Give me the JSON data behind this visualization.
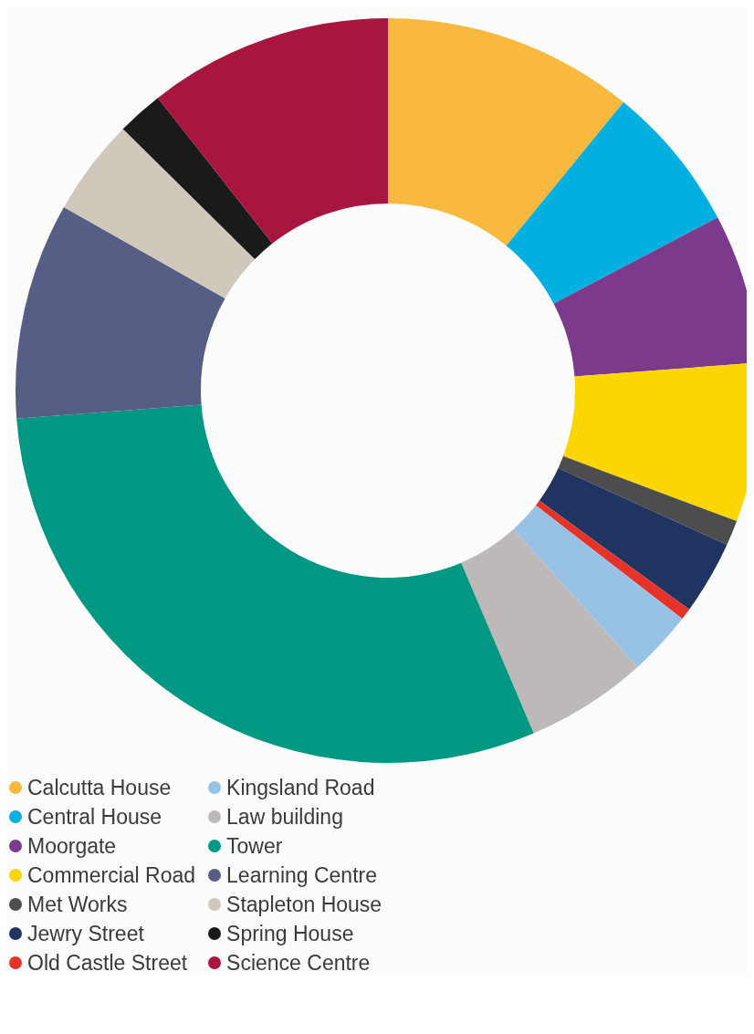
{
  "chart_data": {
    "type": "donut",
    "categories": [
      "Calcutta House",
      "Central House",
      "Moorgate",
      "Commercial Road",
      "Met Works",
      "Jewry Street",
      "Old Castle Street",
      "Kingsland Road",
      "Law building",
      "Tower",
      "Learning Centre",
      "Stapleton House",
      "Spring House",
      "Science Centre"
    ],
    "values": [
      10.9,
      6.4,
      6.5,
      6.9,
      1.1,
      3.2,
      0.5,
      2.8,
      5.3,
      30.2,
      9.4,
      4.2,
      2.0,
      10.6
    ],
    "colors": [
      "#f8b93e",
      "#00b0e0",
      "#7c3a8c",
      "#fbd600",
      "#4d4d4f",
      "#1f3461",
      "#e63329",
      "#98c1e6",
      "#bcb9b8",
      "#009882",
      "#565e85",
      "#d1c8bc",
      "#1a1a1a",
      "#a8153f"
    ],
    "legend": "bottom"
  }
}
